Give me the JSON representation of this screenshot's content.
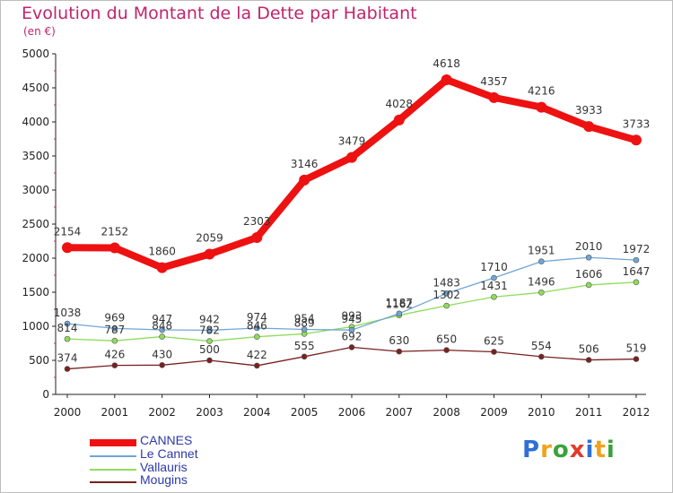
{
  "chart_data": {
    "type": "line",
    "title": "Evolution du Montant de la Dette par Habitant",
    "subtitle": "(en €)",
    "categories": [
      "2000",
      "2001",
      "2002",
      "2003",
      "2004",
      "2005",
      "2006",
      "2007",
      "2008",
      "2009",
      "2010",
      "2011",
      "2012"
    ],
    "ylim": [
      0,
      5000
    ],
    "yticks": [
      0,
      500,
      1000,
      1500,
      2000,
      2500,
      3000,
      3500,
      4000,
      4500,
      5000
    ],
    "grid": false,
    "legend_position": "bottom-left",
    "series": [
      {
        "name": "CANNES",
        "color": "#ee1111",
        "values": [
          2154,
          2152,
          1860,
          2059,
          2303,
          3146,
          3479,
          4028,
          4618,
          4357,
          4216,
          3933,
          3733
        ]
      },
      {
        "name": "Le Cannet",
        "color": "#6fa6d6",
        "values": [
          1038,
          969,
          947,
          942,
          974,
          954,
          945,
          1187,
          1483,
          1710,
          1951,
          2010,
          1972
        ]
      },
      {
        "name": "Vallauris",
        "color": "#8fdc5c",
        "values": [
          814,
          787,
          848,
          782,
          846,
          889,
          993,
          1162,
          1302,
          1431,
          1496,
          1606,
          1647
        ]
      },
      {
        "name": "Mougins",
        "color": "#7a2020",
        "values": [
          374,
          426,
          430,
          500,
          422,
          555,
          692,
          630,
          650,
          625,
          554,
          506,
          519
        ]
      }
    ]
  },
  "logo": {
    "letters": [
      {
        "ch": "P",
        "color": "#2f6fd6"
      },
      {
        "ch": "r",
        "color": "#f0a21c"
      },
      {
        "ch": "o",
        "color": "#3aa23a"
      },
      {
        "ch": "x",
        "color": "#e23b2b"
      },
      {
        "ch": "i",
        "color": "#2f6fd6"
      },
      {
        "ch": "t",
        "color": "#f0a21c"
      },
      {
        "ch": "i",
        "color": "#3aa23a"
      }
    ]
  }
}
